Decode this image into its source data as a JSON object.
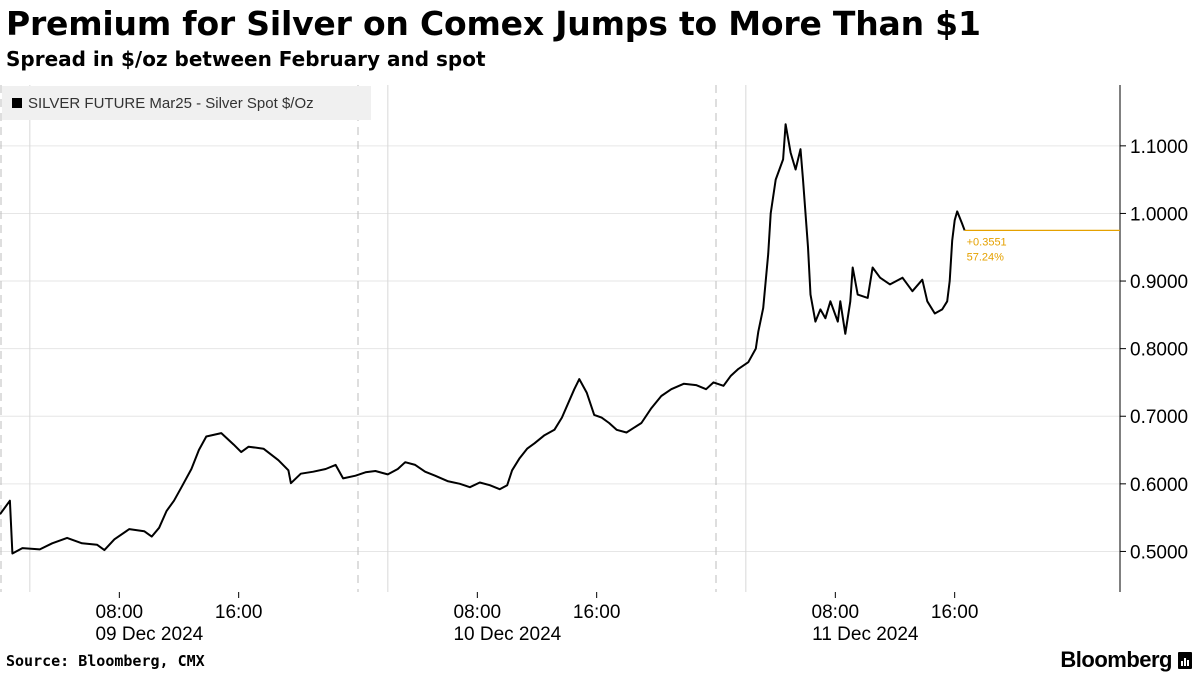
{
  "title": "Premium for Silver on Comex Jumps to More Than $1",
  "subtitle": "Spread in $/oz between February and spot",
  "source": "Source: Bloomberg, CMX",
  "brand": "Bloomberg",
  "colors": {
    "line": "#000000",
    "last_value": "#e5a100",
    "grid": "#e6e6e6"
  },
  "chart_data": {
    "type": "line",
    "title": "Premium for Silver on Comex Jumps to More Than $1",
    "subtitle": "Spread in $/oz between February and spot",
    "ylim": [
      0.44,
      1.19
    ],
    "y_ticks": [
      0.5,
      0.6,
      0.7,
      0.8,
      0.9,
      1.0,
      1.1
    ],
    "y_tick_labels": [
      "0.5000",
      "0.6000",
      "0.7000",
      "0.8000",
      "0.9000",
      "1.0000",
      "1.1000"
    ],
    "x_tick_labels": [
      {
        "time": "08:00",
        "date": "09 Dec 2024"
      },
      {
        "time": "16:00",
        "date": ""
      },
      {
        "time": "08:00",
        "date": "10 Dec 2024"
      },
      {
        "time": "16:00",
        "date": ""
      },
      {
        "time": "08:00",
        "date": "11 Dec 2024"
      },
      {
        "time": "16:00",
        "date": ""
      }
    ],
    "grid": true,
    "legend_position": "top-left",
    "last_value_annotation": {
      "change": "+0.3551",
      "pct": "57.24%"
    },
    "series": [
      {
        "name": "SILVER FUTURE Mar25 - Silver Spot $/Oz",
        "points": [
          [
            "09 Dec 2024 00:00",
            0.555
          ],
          [
            "09 Dec 2024 00:40",
            0.575
          ],
          [
            "09 Dec 2024 00:50",
            0.497
          ],
          [
            "09 Dec 2024 01:30",
            0.505
          ],
          [
            "09 Dec 2024 02:40",
            0.503
          ],
          [
            "09 Dec 2024 03:30",
            0.512
          ],
          [
            "09 Dec 2024 04:30",
            0.52
          ],
          [
            "09 Dec 2024 05:30",
            0.512
          ],
          [
            "09 Dec 2024 06:30",
            0.51
          ],
          [
            "09 Dec 2024 07:00",
            0.502
          ],
          [
            "09 Dec 2024 07:40",
            0.518
          ],
          [
            "09 Dec 2024 08:40",
            0.533
          ],
          [
            "09 Dec 2024 09:40",
            0.53
          ],
          [
            "09 Dec 2024 10:10",
            0.522
          ],
          [
            "09 Dec 2024 10:40",
            0.535
          ],
          [
            "09 Dec 2024 11:10",
            0.56
          ],
          [
            "09 Dec 2024 11:40",
            0.575
          ],
          [
            "09 Dec 2024 12:10",
            0.595
          ],
          [
            "09 Dec 2024 12:50",
            0.622
          ],
          [
            "09 Dec 2024 13:20",
            0.65
          ],
          [
            "09 Dec 2024 13:50",
            0.67
          ],
          [
            "09 Dec 2024 14:50",
            0.675
          ],
          [
            "09 Dec 2024 15:40",
            0.658
          ],
          [
            "09 Dec 2024 16:10",
            0.647
          ],
          [
            "09 Dec 2024 16:40",
            0.655
          ],
          [
            "09 Dec 2024 17:40",
            0.652
          ],
          [
            "09 Dec 2024 18:40",
            0.635
          ],
          [
            "09 Dec 2024 19:20",
            0.62
          ],
          [
            "09 Dec 2024 19:30",
            0.601
          ],
          [
            "09 Dec 2024 20:10",
            0.615
          ],
          [
            "09 Dec 2024 21:00",
            0.618
          ],
          [
            "09 Dec 2024 21:50",
            0.622
          ],
          [
            "09 Dec 2024 22:30",
            0.628
          ],
          [
            "09 Dec 2024 23:00",
            0.608
          ],
          [
            "09 Dec 2024 23:50",
            0.612
          ],
          [
            "10 Dec 2024 00:30",
            0.617
          ],
          [
            "10 Dec 2024 01:10",
            0.619
          ],
          [
            "10 Dec 2024 02:00",
            0.614
          ],
          [
            "10 Dec 2024 02:40",
            0.622
          ],
          [
            "10 Dec 2024 03:10",
            0.632
          ],
          [
            "10 Dec 2024 03:50",
            0.628
          ],
          [
            "10 Dec 2024 04:30",
            0.618
          ],
          [
            "10 Dec 2024 05:10",
            0.612
          ],
          [
            "10 Dec 2024 06:00",
            0.604
          ],
          [
            "10 Dec 2024 06:50",
            0.6
          ],
          [
            "10 Dec 2024 07:30",
            0.595
          ],
          [
            "10 Dec 2024 08:10",
            0.602
          ],
          [
            "10 Dec 2024 08:50",
            0.598
          ],
          [
            "10 Dec 2024 09:30",
            0.592
          ],
          [
            "10 Dec 2024 10:00",
            0.598
          ],
          [
            "10 Dec 2024 10:20",
            0.62
          ],
          [
            "10 Dec 2024 10:50",
            0.638
          ],
          [
            "10 Dec 2024 11:20",
            0.652
          ],
          [
            "10 Dec 2024 11:50",
            0.66
          ],
          [
            "10 Dec 2024 12:30",
            0.672
          ],
          [
            "10 Dec 2024 13:10",
            0.68
          ],
          [
            "10 Dec 2024 13:40",
            0.698
          ],
          [
            "10 Dec 2024 14:30",
            0.74
          ],
          [
            "10 Dec 2024 14:50",
            0.755
          ],
          [
            "10 Dec 2024 15:20",
            0.735
          ],
          [
            "10 Dec 2024 15:50",
            0.702
          ],
          [
            "10 Dec 2024 16:20",
            0.698
          ],
          [
            "10 Dec 2024 16:50",
            0.69
          ],
          [
            "10 Dec 2024 17:20",
            0.68
          ],
          [
            "10 Dec 2024 18:00",
            0.676
          ],
          [
            "10 Dec 2024 18:30",
            0.683
          ],
          [
            "10 Dec 2024 19:00",
            0.69
          ],
          [
            "10 Dec 2024 19:40",
            0.712
          ],
          [
            "10 Dec 2024 20:20",
            0.73
          ],
          [
            "10 Dec 2024 21:00",
            0.74
          ],
          [
            "10 Dec 2024 21:50",
            0.748
          ],
          [
            "10 Dec 2024 22:40",
            0.746
          ],
          [
            "10 Dec 2024 23:20",
            0.74
          ],
          [
            "10 Dec 2024 23:50",
            0.75
          ],
          [
            "11 Dec 2024 00:30",
            0.745
          ],
          [
            "11 Dec 2024 01:00",
            0.76
          ],
          [
            "11 Dec 2024 01:30",
            0.77
          ],
          [
            "11 Dec 2024 02:10",
            0.78
          ],
          [
            "11 Dec 2024 02:40",
            0.8
          ],
          [
            "11 Dec 2024 02:50",
            0.825
          ],
          [
            "11 Dec 2024 03:10",
            0.86
          ],
          [
            "11 Dec 2024 03:30",
            0.94
          ],
          [
            "11 Dec 2024 03:40",
            1.0
          ],
          [
            "11 Dec 2024 04:00",
            1.05
          ],
          [
            "11 Dec 2024 04:30",
            1.08
          ],
          [
            "11 Dec 2024 04:40",
            1.132
          ],
          [
            "11 Dec 2024 05:00",
            1.09
          ],
          [
            "11 Dec 2024 05:20",
            1.065
          ],
          [
            "11 Dec 2024 05:40",
            1.095
          ],
          [
            "11 Dec 2024 05:50",
            1.05
          ],
          [
            "11 Dec 2024 06:10",
            0.95
          ],
          [
            "11 Dec 2024 06:20",
            0.88
          ],
          [
            "11 Dec 2024 06:40",
            0.84
          ],
          [
            "11 Dec 2024 07:00",
            0.858
          ],
          [
            "11 Dec 2024 07:20",
            0.845
          ],
          [
            "11 Dec 2024 07:40",
            0.87
          ],
          [
            "11 Dec 2024 08:10",
            0.84
          ],
          [
            "11 Dec 2024 08:20",
            0.87
          ],
          [
            "11 Dec 2024 08:40",
            0.822
          ],
          [
            "11 Dec 2024 09:00",
            0.87
          ],
          [
            "11 Dec 2024 09:10",
            0.92
          ],
          [
            "11 Dec 2024 09:30",
            0.88
          ],
          [
            "11 Dec 2024 10:10",
            0.875
          ],
          [
            "11 Dec 2024 10:30",
            0.92
          ],
          [
            "11 Dec 2024 11:00",
            0.905
          ],
          [
            "11 Dec 2024 11:40",
            0.895
          ],
          [
            "11 Dec 2024 12:30",
            0.905
          ],
          [
            "11 Dec 2024 13:10",
            0.885
          ],
          [
            "11 Dec 2024 13:50",
            0.902
          ],
          [
            "11 Dec 2024 14:10",
            0.87
          ],
          [
            "11 Dec 2024 14:40",
            0.852
          ],
          [
            "11 Dec 2024 15:10",
            0.858
          ],
          [
            "11 Dec 2024 15:30",
            0.87
          ],
          [
            "11 Dec 2024 15:40",
            0.9
          ],
          [
            "11 Dec 2024 15:50",
            0.96
          ],
          [
            "11 Dec 2024 16:00",
            0.99
          ],
          [
            "11 Dec 2024 16:10",
            1.003
          ],
          [
            "11 Dec 2024 16:30",
            0.985
          ],
          [
            "11 Dec 2024 16:40",
            0.975
          ]
        ]
      }
    ]
  }
}
